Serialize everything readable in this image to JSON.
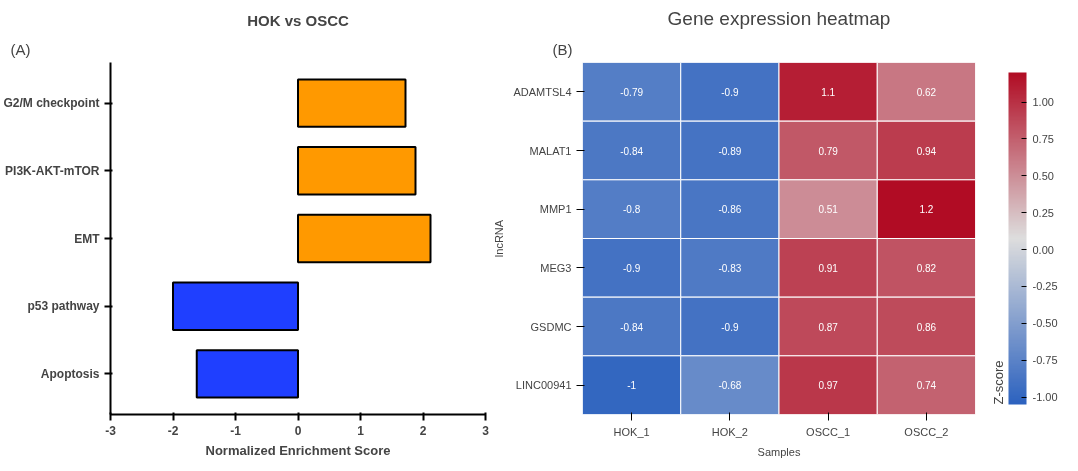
{
  "chart_data": [
    {
      "type": "bar",
      "orientation": "horizontal",
      "title": "HOK vs OSCC",
      "xlabel": "Normalized Enrichment Score",
      "categories": [
        "G2/M checkpoint",
        "PI3K-AKT-mTOR",
        "EMT",
        "p53 pathway",
        "Apoptosis"
      ],
      "values": [
        1.72,
        1.88,
        2.12,
        -2.0,
        -1.62
      ],
      "colors": [
        "#ff9900",
        "#ff9900",
        "#ff9900",
        "#1f3fff",
        "#1f3fff"
      ],
      "xlim": [
        -3,
        3
      ],
      "xticks": [
        -3,
        -2,
        -1,
        0,
        1,
        2,
        3
      ],
      "grid": false,
      "annotations": [
        "(A)"
      ]
    },
    {
      "type": "heatmap",
      "title": "Gene expression heatmap",
      "xlabel": "Samples",
      "ylabel": "lncRNA",
      "clabel": "Z-score",
      "categories": [
        "HOK_1",
        "HOK_2",
        "OSCC_1",
        "OSCC_2"
      ],
      "y_categories": [
        "ADAMTSL4",
        "MALAT1",
        "MMP1",
        "MEG3",
        "GSDMC",
        "LINC00941"
      ],
      "cells": [
        [
          -0.79,
          -0.9,
          1.1,
          0.62
        ],
        [
          -0.84,
          -0.89,
          0.79,
          0.94
        ],
        [
          -0.8,
          -0.86,
          0.51,
          1.2
        ],
        [
          -0.9,
          -0.83,
          0.91,
          0.82
        ],
        [
          -0.84,
          -0.9,
          0.87,
          0.86
        ],
        [
          -1,
          -0.68,
          0.97,
          0.74
        ]
      ],
      "clim": [
        -1.05,
        1.2
      ],
      "cticks": [
        {
          "value": -1,
          "label": "-1.00"
        },
        {
          "value": -0.75,
          "label": "-0.75"
        },
        {
          "value": -0.5,
          "label": "-0.50"
        },
        {
          "value": -0.25,
          "label": "-0.25"
        },
        {
          "value": 0,
          "label": "0.00"
        },
        {
          "value": 0.25,
          "label": "0.25"
        },
        {
          "value": 0.5,
          "label": "0.50"
        },
        {
          "value": 0.75,
          "label": "0.75"
        },
        {
          "value": 1,
          "label": "1.00"
        }
      ],
      "cell_labels": [
        [
          "-0.79",
          "-0.9",
          "1.1",
          "0.62"
        ],
        [
          "-0.84",
          "-0.89",
          "0.79",
          "0.94"
        ],
        [
          "-0.8",
          "-0.86",
          "0.51",
          "1.2"
        ],
        [
          "-0.9",
          "-0.83",
          "0.91",
          "0.82"
        ],
        [
          "-0.84",
          "-0.9",
          "0.87",
          "0.86"
        ],
        [
          "-1",
          "-0.68",
          "0.97",
          "0.74"
        ]
      ],
      "annotations": [
        "(B)"
      ]
    }
  ]
}
